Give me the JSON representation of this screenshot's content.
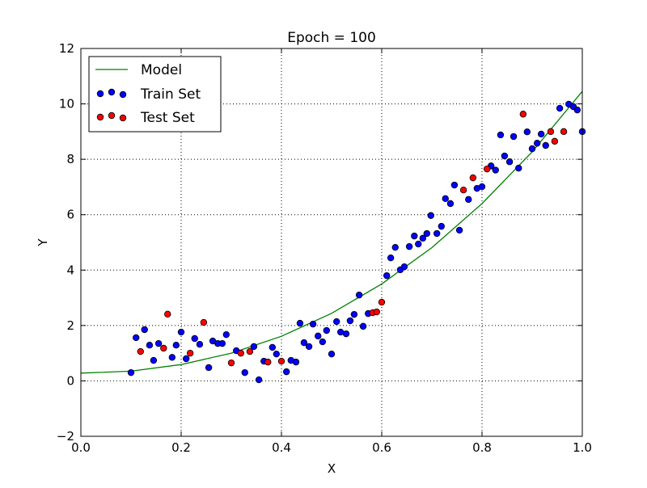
{
  "chart_data": {
    "type": "scatter",
    "title": "Epoch = 100",
    "xlabel": "X",
    "ylabel": "Y",
    "xlim": [
      0.0,
      1.0
    ],
    "ylim": [
      -2,
      12
    ],
    "xticks": [
      "0.0",
      "0.2",
      "0.4",
      "0.6",
      "0.8",
      "1.0"
    ],
    "yticks": [
      "−2",
      "0",
      "2",
      "4",
      "6",
      "8",
      "10",
      "12"
    ],
    "xtick_values": [
      0.0,
      0.2,
      0.4,
      0.6,
      0.8,
      1.0
    ],
    "ytick_values": [
      -2,
      0,
      2,
      4,
      6,
      8,
      10,
      12
    ],
    "grid": true,
    "legend_placement": "top-left",
    "series": [
      {
        "name": "Model",
        "kind": "line",
        "color": "#008000",
        "x": [
          0.0,
          0.1,
          0.2,
          0.3,
          0.4,
          0.5,
          0.6,
          0.7,
          0.8,
          0.9,
          1.0
        ],
        "y": [
          0.28,
          0.35,
          0.59,
          1.0,
          1.61,
          2.44,
          3.5,
          4.81,
          6.4,
          8.27,
          10.45
        ]
      },
      {
        "name": "Train Set",
        "kind": "scatter",
        "color": "#0000ff",
        "x": [
          0.1,
          0.11,
          0.127,
          0.137,
          0.145,
          0.155,
          0.182,
          0.19,
          0.2,
          0.21,
          0.227,
          0.237,
          0.255,
          0.263,
          0.273,
          0.282,
          0.29,
          0.31,
          0.327,
          0.345,
          0.355,
          0.365,
          0.382,
          0.39,
          0.41,
          0.419,
          0.429,
          0.437,
          0.445,
          0.455,
          0.463,
          0.473,
          0.482,
          0.49,
          0.5,
          0.51,
          0.518,
          0.529,
          0.537,
          0.545,
          0.555,
          0.563,
          0.573,
          0.61,
          0.618,
          0.627,
          0.637,
          0.645,
          0.655,
          0.665,
          0.673,
          0.682,
          0.69,
          0.698,
          0.71,
          0.719,
          0.727,
          0.737,
          0.745,
          0.755,
          0.773,
          0.79,
          0.8,
          0.818,
          0.827,
          0.837,
          0.845,
          0.855,
          0.863,
          0.873,
          0.89,
          0.9,
          0.91,
          0.918,
          0.927,
          0.955,
          0.973,
          0.982,
          0.99,
          1.0
        ],
        "y": [
          0.3,
          1.56,
          1.85,
          1.29,
          0.74,
          1.35,
          0.85,
          1.29,
          1.76,
          0.8,
          1.53,
          1.32,
          0.48,
          1.44,
          1.35,
          1.35,
          1.67,
          1.09,
          0.3,
          1.24,
          0.04,
          0.71,
          1.21,
          0.97,
          0.33,
          0.74,
          0.68,
          2.08,
          1.38,
          1.24,
          2.05,
          1.62,
          1.41,
          1.82,
          0.97,
          2.14,
          1.76,
          1.7,
          2.17,
          2.4,
          3.1,
          1.97,
          2.43,
          3.8,
          4.44,
          4.82,
          4.01,
          4.12,
          4.85,
          5.23,
          4.94,
          5.15,
          5.32,
          5.97,
          5.32,
          5.58,
          6.58,
          6.4,
          7.07,
          5.44,
          6.55,
          6.95,
          7.01,
          7.76,
          7.61,
          8.88,
          8.12,
          7.91,
          8.82,
          7.68,
          8.99,
          8.38,
          8.58,
          8.91,
          8.5,
          9.84,
          9.99,
          9.9,
          9.78,
          9.0
        ]
      },
      {
        "name": "Test Set",
        "kind": "scatter",
        "color": "#ff0000",
        "x": [
          0.119,
          0.165,
          0.173,
          0.218,
          0.245,
          0.3,
          0.319,
          0.337,
          0.373,
          0.4,
          0.582,
          0.59,
          0.6,
          0.763,
          0.782,
          0.81,
          0.882,
          0.937,
          0.945,
          0.963
        ],
        "y": [
          1.06,
          1.18,
          2.41,
          1.0,
          2.11,
          0.65,
          1.0,
          1.06,
          0.68,
          0.71,
          2.46,
          2.49,
          2.84,
          6.89,
          7.33,
          7.65,
          9.63,
          9.0,
          8.65,
          9.0
        ]
      }
    ]
  }
}
